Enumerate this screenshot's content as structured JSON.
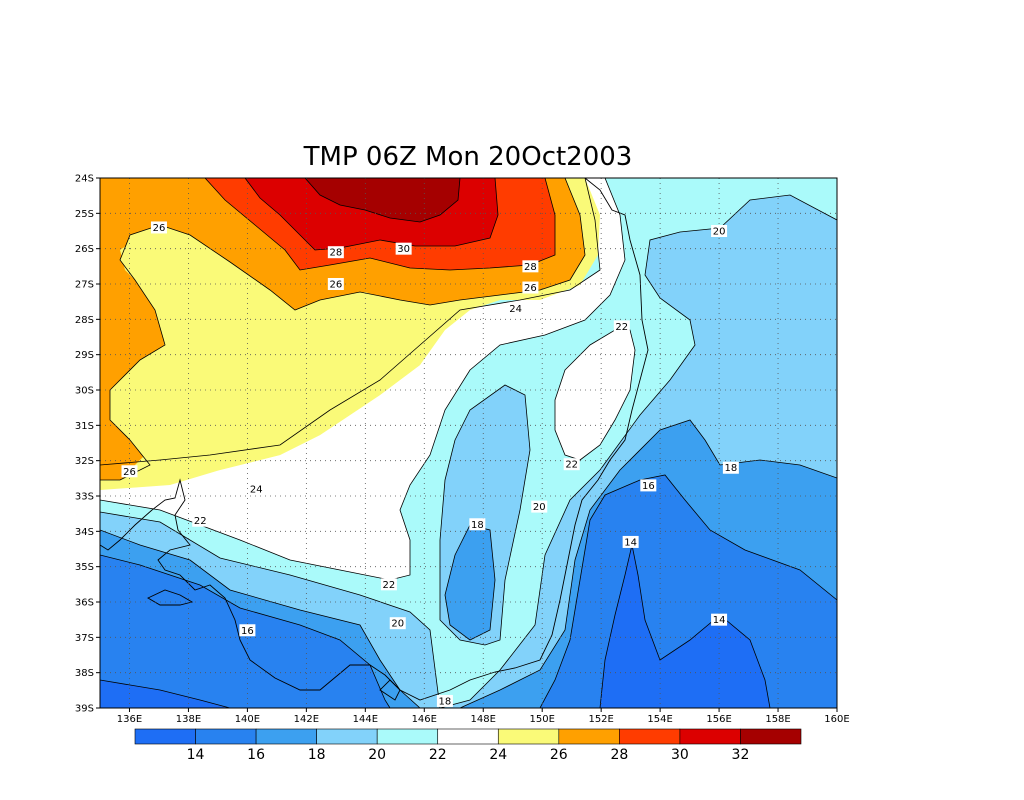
{
  "map": {
    "title": "TMP 06Z Mon 20Oct2003",
    "variable": "TMP",
    "lon_range": [
      135,
      160
    ],
    "lat_range": [
      -39,
      -24
    ],
    "x_ticks": [
      "136E",
      "138E",
      "140E",
      "142E",
      "144E",
      "146E",
      "148E",
      "150E",
      "152E",
      "154E",
      "156E",
      "158E",
      "160E"
    ],
    "y_ticks": [
      "24S",
      "25S",
      "26S",
      "27S",
      "28S",
      "29S",
      "30S",
      "31S",
      "32S",
      "33S",
      "34S",
      "35S",
      "36S",
      "37S",
      "38S",
      "39S"
    ],
    "grid": "dotted",
    "contour_labels": [
      {
        "text": "26",
        "lon": 137.0,
        "lat": -25.4
      },
      {
        "text": "28",
        "lon": 143.0,
        "lat": -26.1
      },
      {
        "text": "30",
        "lon": 145.3,
        "lat": -26.0
      },
      {
        "text": "28",
        "lon": 149.6,
        "lat": -26.5
      },
      {
        "text": "26",
        "lon": 143.0,
        "lat": -27.0
      },
      {
        "text": "26",
        "lon": 149.6,
        "lat": -27.1
      },
      {
        "text": "24",
        "lon": 149.1,
        "lat": -27.7
      },
      {
        "text": "22",
        "lon": 152.7,
        "lat": -28.2
      },
      {
        "text": "20",
        "lon": 156.0,
        "lat": -25.5
      },
      {
        "text": "26",
        "lon": 136.0,
        "lat": -32.3
      },
      {
        "text": "24",
        "lon": 140.3,
        "lat": -32.8
      },
      {
        "text": "22",
        "lon": 138.4,
        "lat": -33.7
      },
      {
        "text": "22",
        "lon": 151.0,
        "lat": -32.1
      },
      {
        "text": "20",
        "lon": 149.9,
        "lat": -33.3
      },
      {
        "text": "18",
        "lon": 147.8,
        "lat": -33.8
      },
      {
        "text": "18",
        "lon": 156.4,
        "lat": -32.2
      },
      {
        "text": "16",
        "lon": 153.6,
        "lat": -32.7
      },
      {
        "text": "14",
        "lon": 153.0,
        "lat": -34.3
      },
      {
        "text": "22",
        "lon": 144.8,
        "lat": -35.5
      },
      {
        "text": "20",
        "lon": 145.1,
        "lat": -36.6
      },
      {
        "text": "16",
        "lon": 140.0,
        "lat": -36.8
      },
      {
        "text": "14",
        "lon": 156.0,
        "lat": -36.5
      },
      {
        "text": "18",
        "lon": 146.7,
        "lat": -38.8
      }
    ]
  },
  "colorbar": {
    "labels": [
      "14",
      "16",
      "18",
      "20",
      "22",
      "24",
      "26",
      "28",
      "30",
      "32"
    ],
    "colors": [
      "#1e6ef5",
      "#2882f0",
      "#3ca0f0",
      "#82d2fa",
      "#aafafa",
      "#ffffff",
      "#fafa78",
      "#ffa000",
      "#ff3c00",
      "#dc0000",
      "#a50000"
    ]
  },
  "colors": {
    "t12": "#0a50f5",
    "t14": "#1e6ef5",
    "t16": "#2882f0",
    "t18": "#3ca0f0",
    "t20": "#82d2fa",
    "t22": "#aafafa",
    "t24": "#ffffff",
    "t26": "#fafa78",
    "t28": "#ffa000",
    "t30": "#ff3c00",
    "t32": "#dc0000",
    "t34": "#a50000"
  }
}
